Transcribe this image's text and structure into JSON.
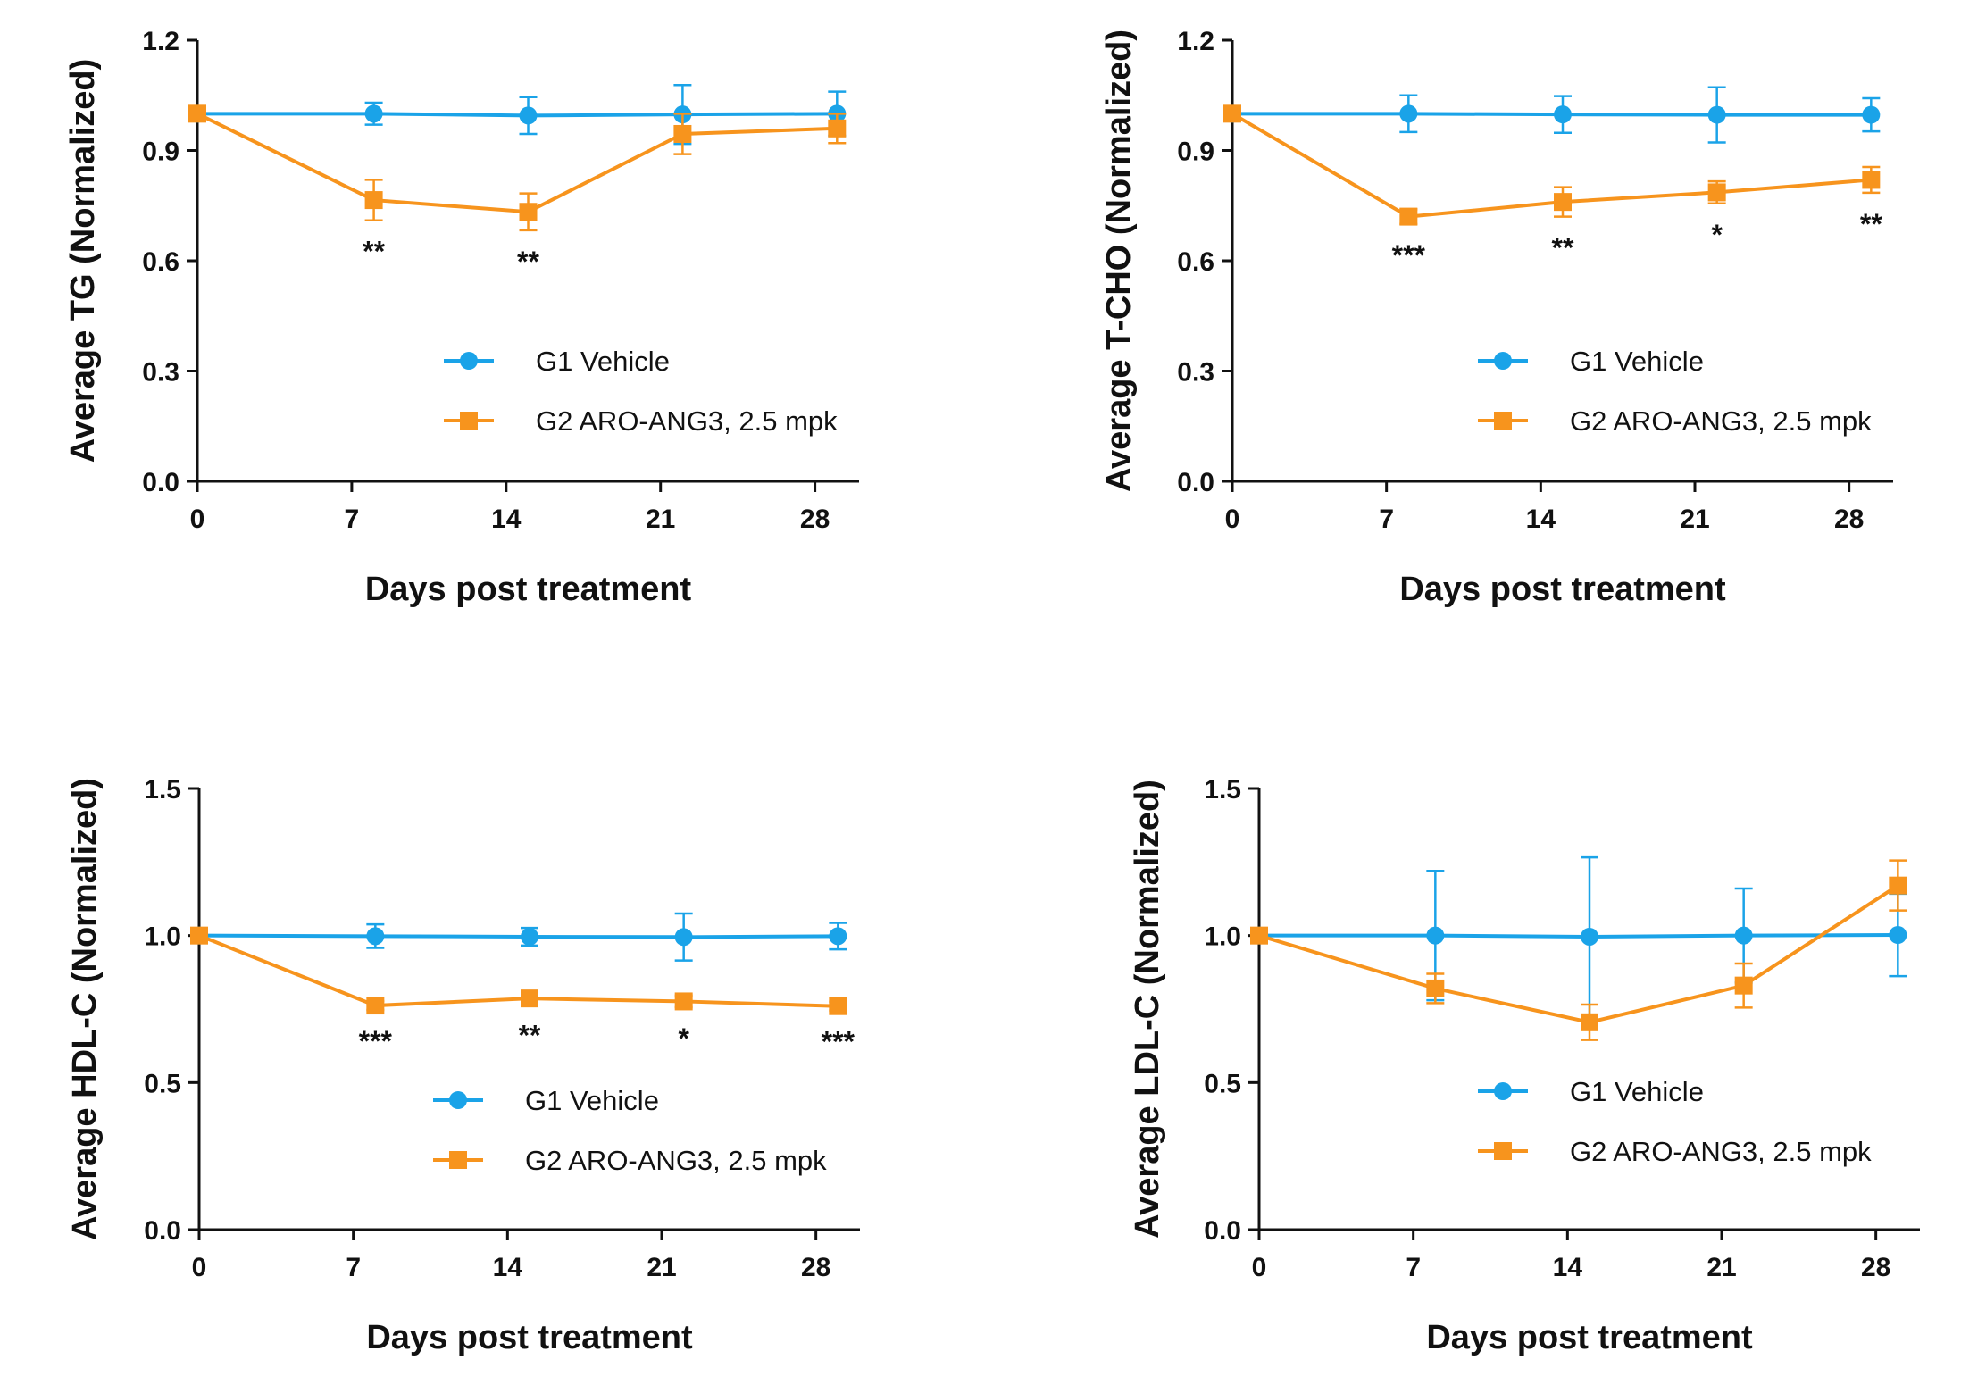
{
  "colors": {
    "vehicle": "#1aa3e8",
    "treated": "#f7941d",
    "axis": "#111111"
  },
  "legend": {
    "vehicle": "G1 Vehicle",
    "treated": "G2 ARO-ANG3, 2.5 mpk"
  },
  "chart_data": [
    {
      "type": "line",
      "ylabel": "Average TG (Normalized)",
      "xlabel": "Days post treatment",
      "xticks": [
        0,
        7,
        14,
        21,
        28
      ],
      "xlim": [
        0,
        30
      ],
      "ylim": [
        0,
        1.2
      ],
      "yticks": [
        "0.0",
        "0.3",
        "0.6",
        "0.9",
        "1.2"
      ],
      "legend_position": "center-right",
      "series": [
        {
          "name": "G1 Vehicle",
          "marker": "circle",
          "x": [
            0,
            8,
            15,
            22,
            29
          ],
          "y": [
            1.0,
            1.0,
            0.995,
            0.998,
            1.0
          ],
          "err": [
            0.0,
            0.03,
            0.05,
            0.08,
            0.06
          ]
        },
        {
          "name": "G2 ARO-ANG3, 2.5 mpk",
          "marker": "square",
          "x": [
            0,
            8,
            15,
            22,
            29
          ],
          "y": [
            1.0,
            0.765,
            0.733,
            0.945,
            0.96
          ],
          "err": [
            0.0,
            0.055,
            0.05,
            0.055,
            0.04
          ]
        }
      ],
      "significance": [
        {
          "x": 8,
          "label": "**"
        },
        {
          "x": 15,
          "label": "**"
        }
      ]
    },
    {
      "type": "line",
      "ylabel": "Average T-CHO (Normalized)",
      "xlabel": "Days post treatment",
      "xticks": [
        0,
        7,
        14,
        21,
        28
      ],
      "xlim": [
        0,
        30
      ],
      "ylim": [
        0,
        1.2
      ],
      "yticks": [
        "0.0",
        "0.3",
        "0.6",
        "0.9",
        "1.2"
      ],
      "legend_position": "center-right",
      "series": [
        {
          "name": "G1 Vehicle",
          "marker": "circle",
          "x": [
            0,
            8,
            15,
            22,
            29
          ],
          "y": [
            1.0,
            1.0,
            0.998,
            0.997,
            0.997
          ],
          "err": [
            0.0,
            0.05,
            0.05,
            0.075,
            0.045
          ]
        },
        {
          "name": "G2 ARO-ANG3, 2.5 mpk",
          "marker": "square",
          "x": [
            0,
            8,
            15,
            22,
            29
          ],
          "y": [
            1.0,
            0.72,
            0.76,
            0.786,
            0.82
          ],
          "err": [
            0.0,
            0.02,
            0.04,
            0.03,
            0.035
          ]
        }
      ],
      "significance": [
        {
          "x": 8,
          "label": "***"
        },
        {
          "x": 15,
          "label": "**"
        },
        {
          "x": 22,
          "label": "*"
        },
        {
          "x": 29,
          "label": "**"
        }
      ]
    },
    {
      "type": "line",
      "ylabel": "Average HDL-C (Normalized)",
      "xlabel": "Days post treatment",
      "xticks": [
        0,
        7,
        14,
        21,
        28
      ],
      "xlim": [
        0,
        30
      ],
      "ylim": [
        0,
        1.5
      ],
      "yticks": [
        "0.0",
        "0.5",
        "1.0",
        "1.5"
      ],
      "legend_position": "lower-right",
      "series": [
        {
          "name": "G1 Vehicle",
          "marker": "circle",
          "x": [
            0,
            8,
            15,
            22,
            29
          ],
          "y": [
            1.0,
            0.998,
            0.996,
            0.995,
            0.998
          ],
          "err": [
            0.0,
            0.04,
            0.03,
            0.08,
            0.045
          ]
        },
        {
          "name": "G2 ARO-ANG3, 2.5 mpk",
          "marker": "square",
          "x": [
            0,
            8,
            15,
            22,
            29
          ],
          "y": [
            1.0,
            0.762,
            0.786,
            0.776,
            0.76
          ],
          "err": [
            0.0,
            0.015,
            0.02,
            0.02,
            0.015
          ]
        }
      ],
      "significance": [
        {
          "x": 8,
          "label": "***"
        },
        {
          "x": 15,
          "label": "**"
        },
        {
          "x": 22,
          "label": "*"
        },
        {
          "x": 29,
          "label": "***"
        }
      ]
    },
    {
      "type": "line",
      "ylabel": "Average LDL-C (Normalized)",
      "xlabel": "Days post treatment",
      "xticks": [
        0,
        7,
        14,
        21,
        28
      ],
      "xlim": [
        0,
        30
      ],
      "ylim": [
        0,
        1.5
      ],
      "yticks": [
        "0.0",
        "0.5",
        "1.0",
        "1.5"
      ],
      "legend_position": "lower-right",
      "series": [
        {
          "name": "G1 Vehicle",
          "marker": "circle",
          "x": [
            0,
            8,
            15,
            22,
            29
          ],
          "y": [
            1.0,
            1.0,
            0.996,
            1.0,
            1.002
          ],
          "err": [
            0.0,
            0.22,
            0.27,
            0.16,
            0.14
          ]
        },
        {
          "name": "G2 ARO-ANG3, 2.5 mpk",
          "marker": "square",
          "x": [
            0,
            8,
            15,
            22,
            29
          ],
          "y": [
            1.0,
            0.82,
            0.705,
            0.83,
            1.17
          ],
          "err": [
            0.0,
            0.05,
            0.06,
            0.075,
            0.085
          ]
        }
      ],
      "significance": []
    }
  ]
}
